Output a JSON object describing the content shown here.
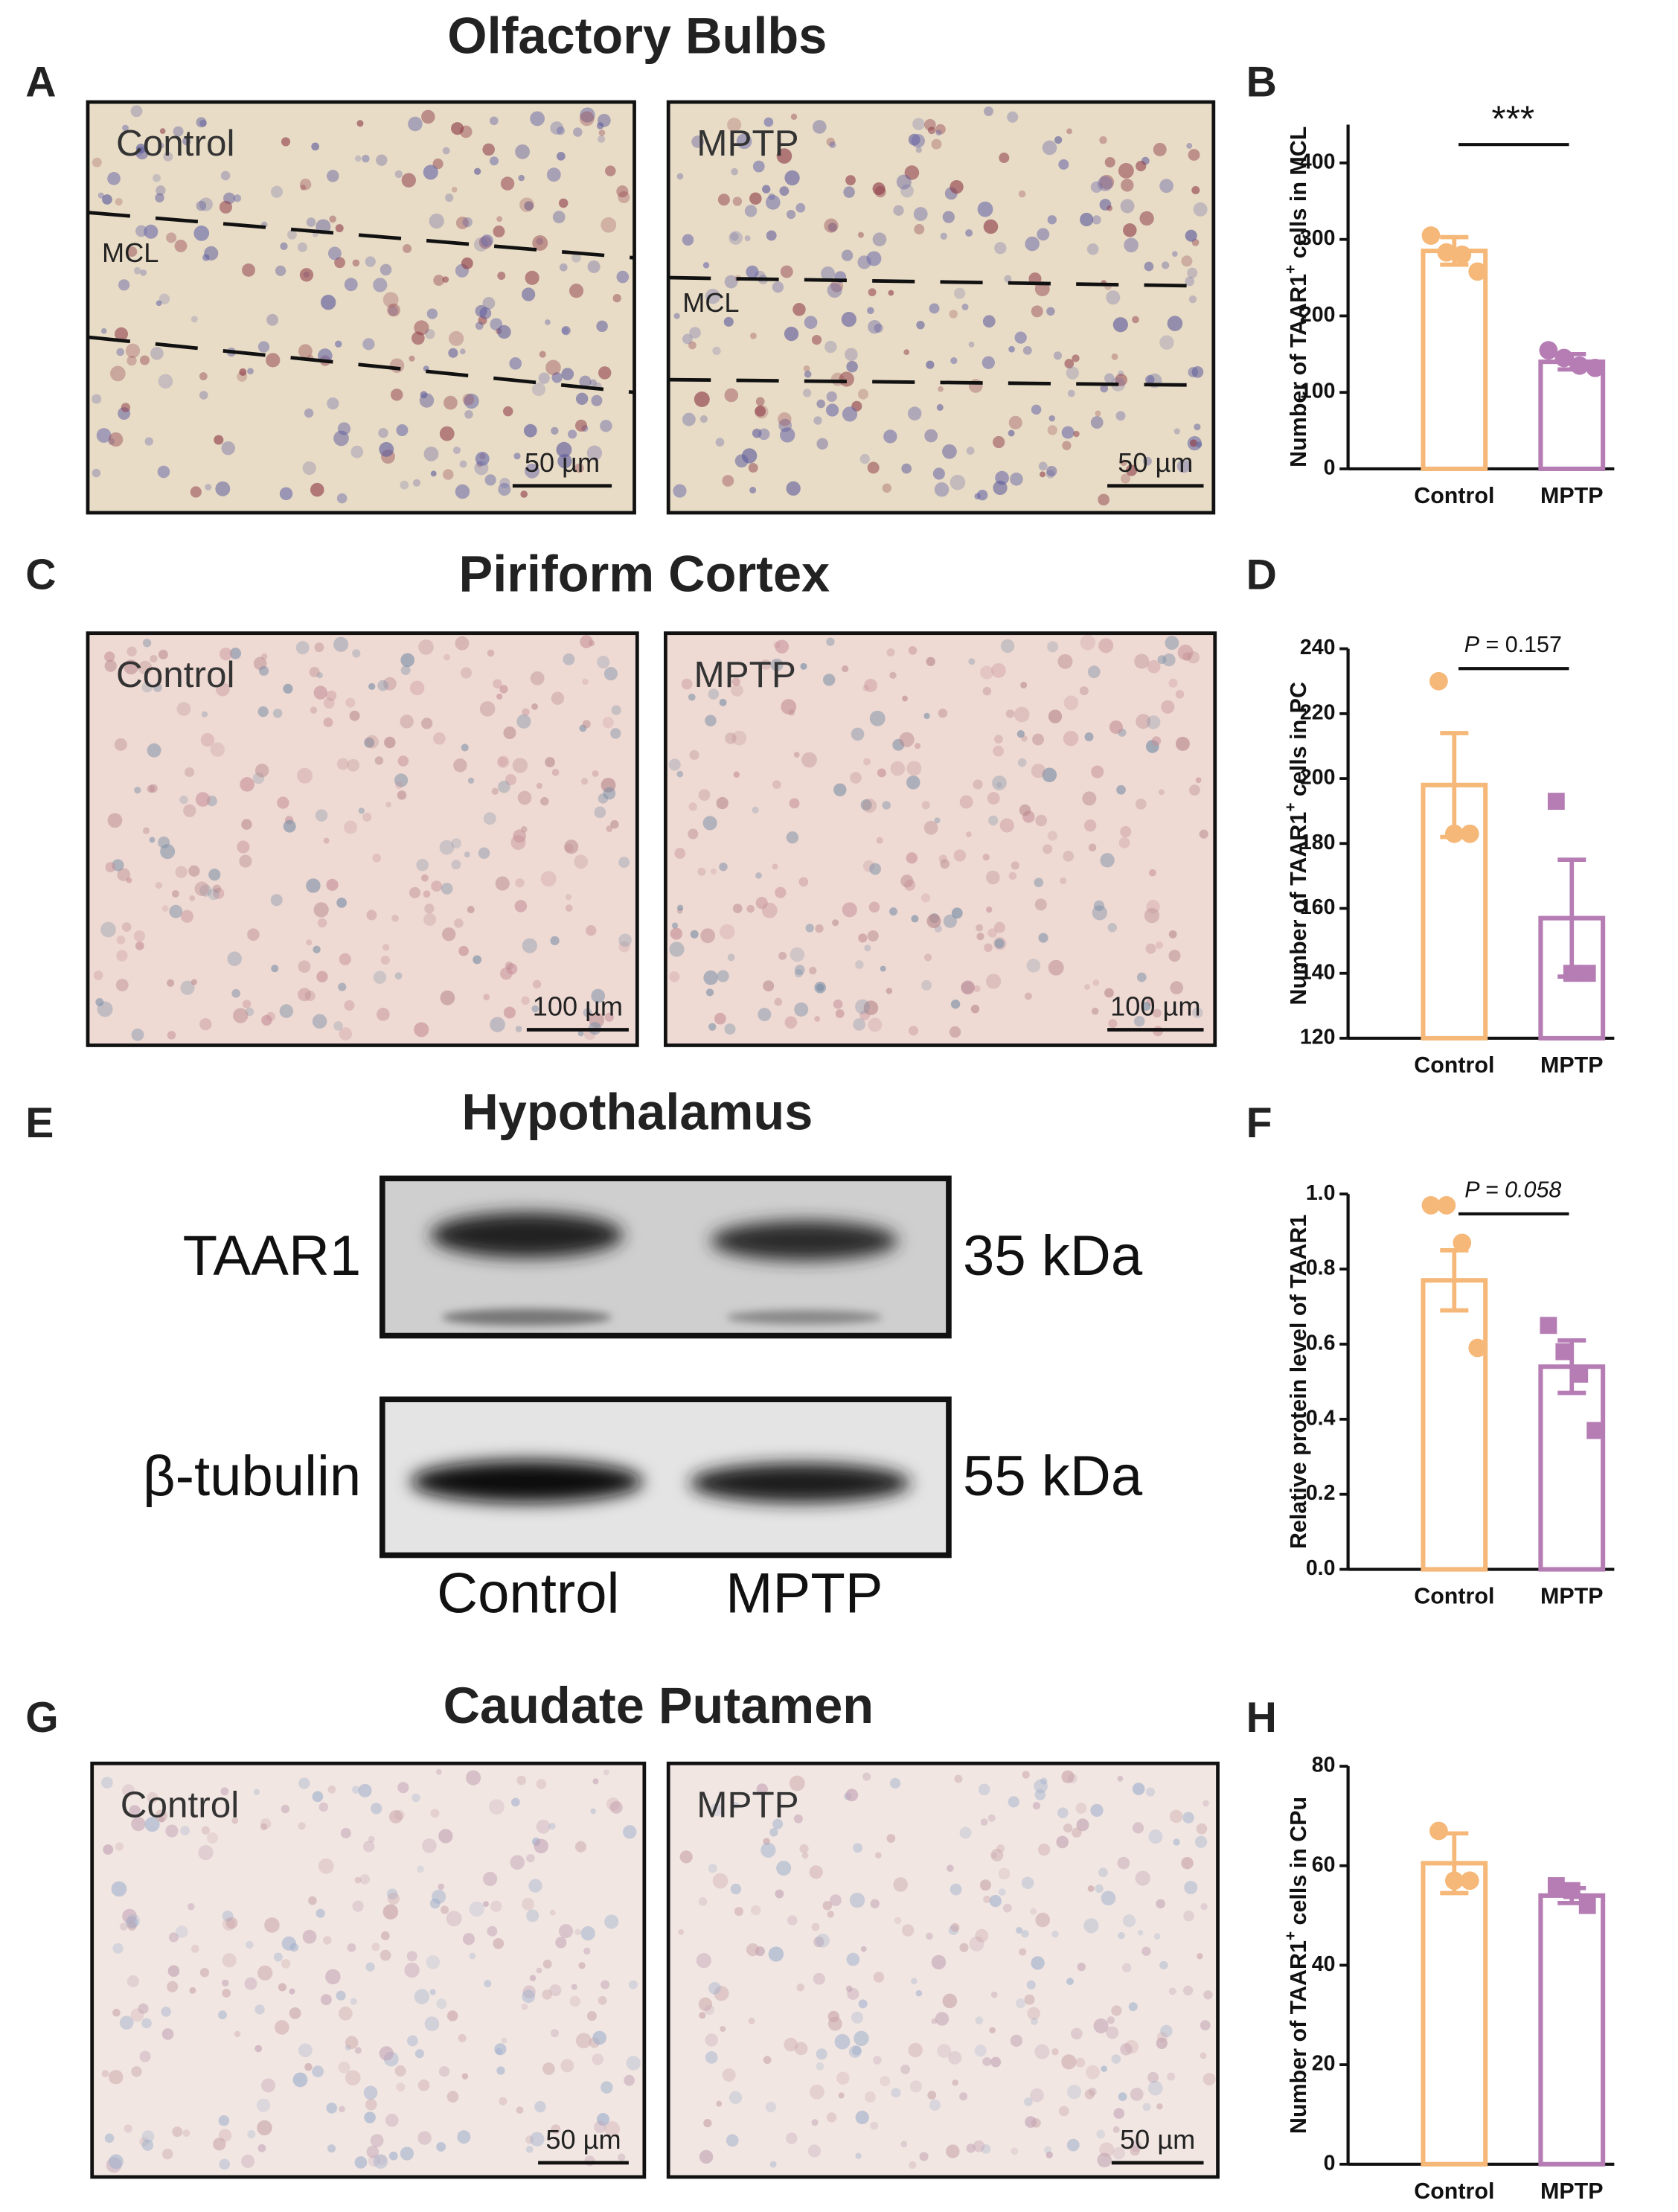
{
  "sections": [
    {
      "letter": "A",
      "title": "Olfactory Bulbs",
      "region_label": "MCL",
      "images": [
        {
          "label": "Control",
          "scale_bar": "50 µm"
        },
        {
          "label": "MPTP",
          "scale_bar": "50 µm"
        }
      ]
    },
    {
      "letter": "C",
      "title": "Piriform Cortex",
      "images": [
        {
          "label": "Control",
          "scale_bar": "100 µm"
        },
        {
          "label": "MPTP",
          "scale_bar": "100 µm"
        }
      ]
    },
    {
      "letter": "E",
      "title": "Hypothalamus",
      "blot": {
        "proteins": [
          "TAAR1",
          "β-tubulin"
        ],
        "sizes": [
          "35 kDa",
          "55 kDa"
        ],
        "lanes": [
          "Control",
          "MPTP"
        ]
      }
    },
    {
      "letter": "G",
      "title": "Caudate Putamen",
      "images": [
        {
          "label": "Control",
          "scale_bar": "50 µm"
        },
        {
          "label": "MPTP",
          "scale_bar": "50 µm"
        }
      ]
    }
  ],
  "chart_data": [
    {
      "type": "bar",
      "panel": "B",
      "ylabel": [
        "Number of TAAR1",
        "+",
        " cells in MCL"
      ],
      "categories": [
        "Control",
        "MPTP"
      ],
      "colors": [
        "#f5b878",
        "#b57db4"
      ],
      "markers": [
        "circle",
        "circle"
      ],
      "values": [
        285,
        140
      ],
      "errors": [
        18,
        10
      ],
      "points": [
        [
          305,
          283,
          280,
          258
        ],
        [
          155,
          145,
          135,
          132
        ]
      ],
      "ylim": [
        0,
        450
      ],
      "yticks": [
        0,
        100,
        200,
        300,
        400
      ],
      "annotation": [
        {
          "text": "***",
          "italic": false
        }
      ]
    },
    {
      "type": "bar",
      "panel": "D",
      "ylabel": [
        "Number of TAAR1",
        "+",
        " cells in PC"
      ],
      "categories": [
        "Control",
        "MPTP"
      ],
      "colors": [
        "#f5b878",
        "#b57db4"
      ],
      "markers": [
        "circle",
        "square"
      ],
      "values": [
        198,
        157
      ],
      "errors": [
        16,
        18
      ],
      "points": [
        [
          230,
          183,
          183
        ],
        [
          193,
          140,
          140
        ]
      ],
      "ylim": [
        120,
        240
      ],
      "yticks": [
        120,
        140,
        160,
        180,
        200,
        220,
        240
      ],
      "annotation": [
        {
          "text": "P",
          "italic": true
        },
        {
          "text": " = 0.157",
          "italic": false
        }
      ]
    },
    {
      "type": "bar",
      "panel": "F",
      "ylabel": [
        "Relative protein level of TAAR1"
      ],
      "categories": [
        "Control",
        "MPTP"
      ],
      "colors": [
        "#f5b878",
        "#b57db4"
      ],
      "markers": [
        "circle",
        "square"
      ],
      "values": [
        0.77,
        0.54
      ],
      "errors": [
        0.08,
        0.07
      ],
      "points": [
        [
          0.97,
          0.97,
          0.87,
          0.59
        ],
        [
          0.65,
          0.58,
          0.52,
          0.37
        ]
      ],
      "ylim": [
        0,
        1
      ],
      "yticks": [
        {
          "value": 0,
          "label": "0.0"
        },
        0.2,
        0.4,
        0.6,
        0.8,
        {
          "value": 1,
          "label": "1.0"
        }
      ],
      "annotation": [
        {
          "text": "P = 0.058",
          "italic": true
        }
      ]
    },
    {
      "type": "bar",
      "panel": "H",
      "ylabel": [
        "Number of TAAR1",
        "+",
        " cells in CPu"
      ],
      "categories": [
        "Control",
        "MPTP"
      ],
      "colors": [
        "#f5b878",
        "#b57db4"
      ],
      "markers": [
        "circle",
        "square"
      ],
      "values": [
        60.5,
        54
      ],
      "errors": [
        6,
        1.5
      ],
      "points": [
        [
          67,
          57,
          57
        ],
        [
          56,
          55,
          52
        ]
      ],
      "ylim": [
        0,
        80
      ],
      "yticks": [
        0,
        20,
        40,
        60,
        80
      ],
      "annotation": []
    }
  ]
}
